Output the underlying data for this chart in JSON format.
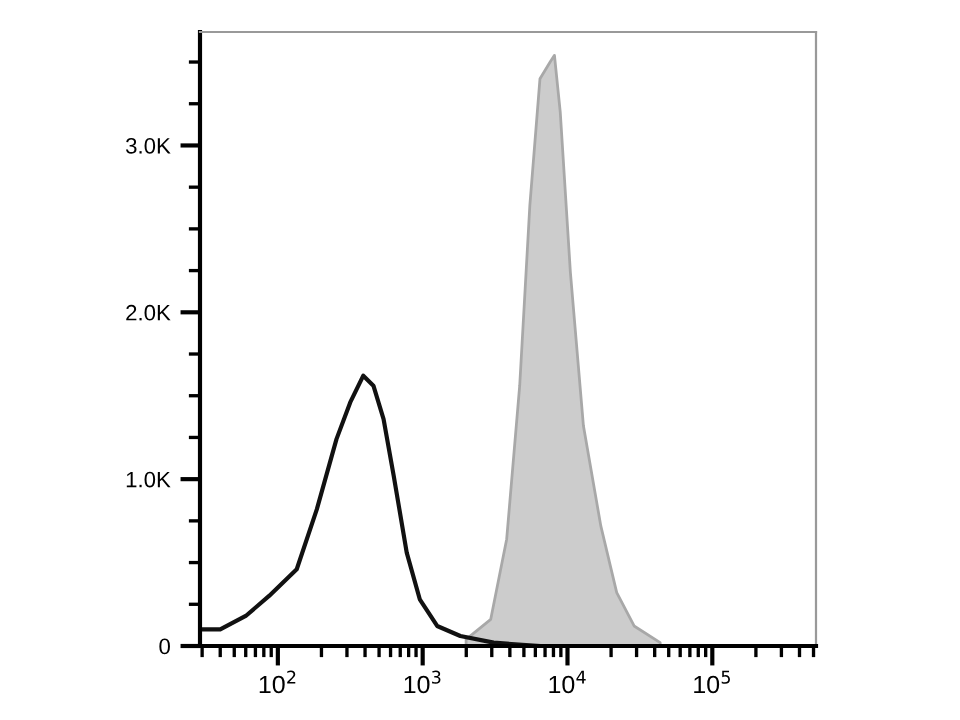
{
  "chart_data": {
    "type": "line",
    "log": "x",
    "xlim": [
      29,
      520000
    ],
    "ylim": [
      0,
      3680
    ],
    "xticks": [
      {
        "value": 100,
        "label": "10$^{2}$"
      },
      {
        "value": 1000,
        "label": "10$^{3}$"
      },
      {
        "value": 10000,
        "label": "10$^{4}$"
      },
      {
        "value": 100000,
        "label": "10$^{5}$"
      }
    ],
    "yticks": [
      0,
      {
        "value": 1000,
        "label": "1.0K"
      },
      {
        "value": 2000,
        "label": "2.0K"
      },
      {
        "value": 3000,
        "label": "3.0K"
      }
    ],
    "grid": false,
    "legend": false,
    "marker": "none",
    "series": [
      {
        "type": "area",
        "color": "#cccccc",
        "x": [
          1995,
          2951,
          3802,
          4677,
          5495,
          6457,
          7586,
          8128,
          8913,
          10471,
          12882,
          16982,
          21878,
          28840,
          43652
        ],
        "values": [
          40,
          160,
          640,
          1560,
          2640,
          3400,
          3500,
          3540,
          3200,
          2240,
          1320,
          720,
          320,
          120,
          20
        ]
      },
      {
        "color": "#111111",
        "line_style": "solid",
        "x": [
          30,
          40,
          60,
          87,
          135,
          186,
          254,
          316,
          389,
          457,
          537,
          631,
          776,
          955,
          1259,
          1820,
          3090,
          6300
        ],
        "values": [
          100,
          100,
          180,
          300,
          460,
          820,
          1240,
          1460,
          1620,
          1560,
          1360,
          1020,
          560,
          280,
          120,
          60,
          20,
          0
        ]
      }
    ]
  }
}
